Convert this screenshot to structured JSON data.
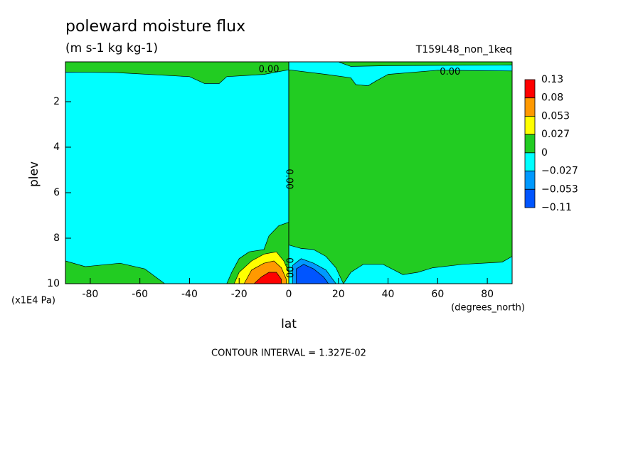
{
  "chart_data": {
    "type": "contour",
    "title": "poleward moisture flux",
    "subtitle": "(m s-1 kg kg-1)",
    "run_label": "T159L48_non_1keq",
    "x_label": "lat",
    "x_units": "(degrees_north)",
    "y_label": "plev",
    "y_units": "(x1E4 Pa)",
    "xlim": [
      -90,
      90
    ],
    "ylim": [
      10,
      0.25
    ],
    "xticks": [
      -80,
      -60,
      -40,
      -20,
      0,
      20,
      40,
      60,
      80
    ],
    "yticks": [
      2,
      4,
      6,
      8,
      10
    ],
    "footer": "CONTOUR INTERVAL = 1.327E-02",
    "levels": [
      0.13,
      0.08,
      0.053,
      0.027,
      0,
      {
        "value": -0.027,
        "label": "−0.027"
      },
      {
        "value": -0.053,
        "label": "−0.053"
      },
      {
        "value": -0.11,
        "label": "−0.11"
      }
    ],
    "level_colors": [
      "#ff0000",
      "#ff9900",
      "#ffff00",
      "#22cc22",
      "#00ffff",
      "#0099ff",
      "#0055ff"
    ],
    "contour_labels": [
      {
        "value": 0,
        "label": "0.00"
      },
      {
        "value": 0,
        "label": "0.00"
      },
      {
        "value": 0,
        "label": "0.00"
      },
      {
        "value": 0,
        "label": "0.00"
      }
    ]
  }
}
